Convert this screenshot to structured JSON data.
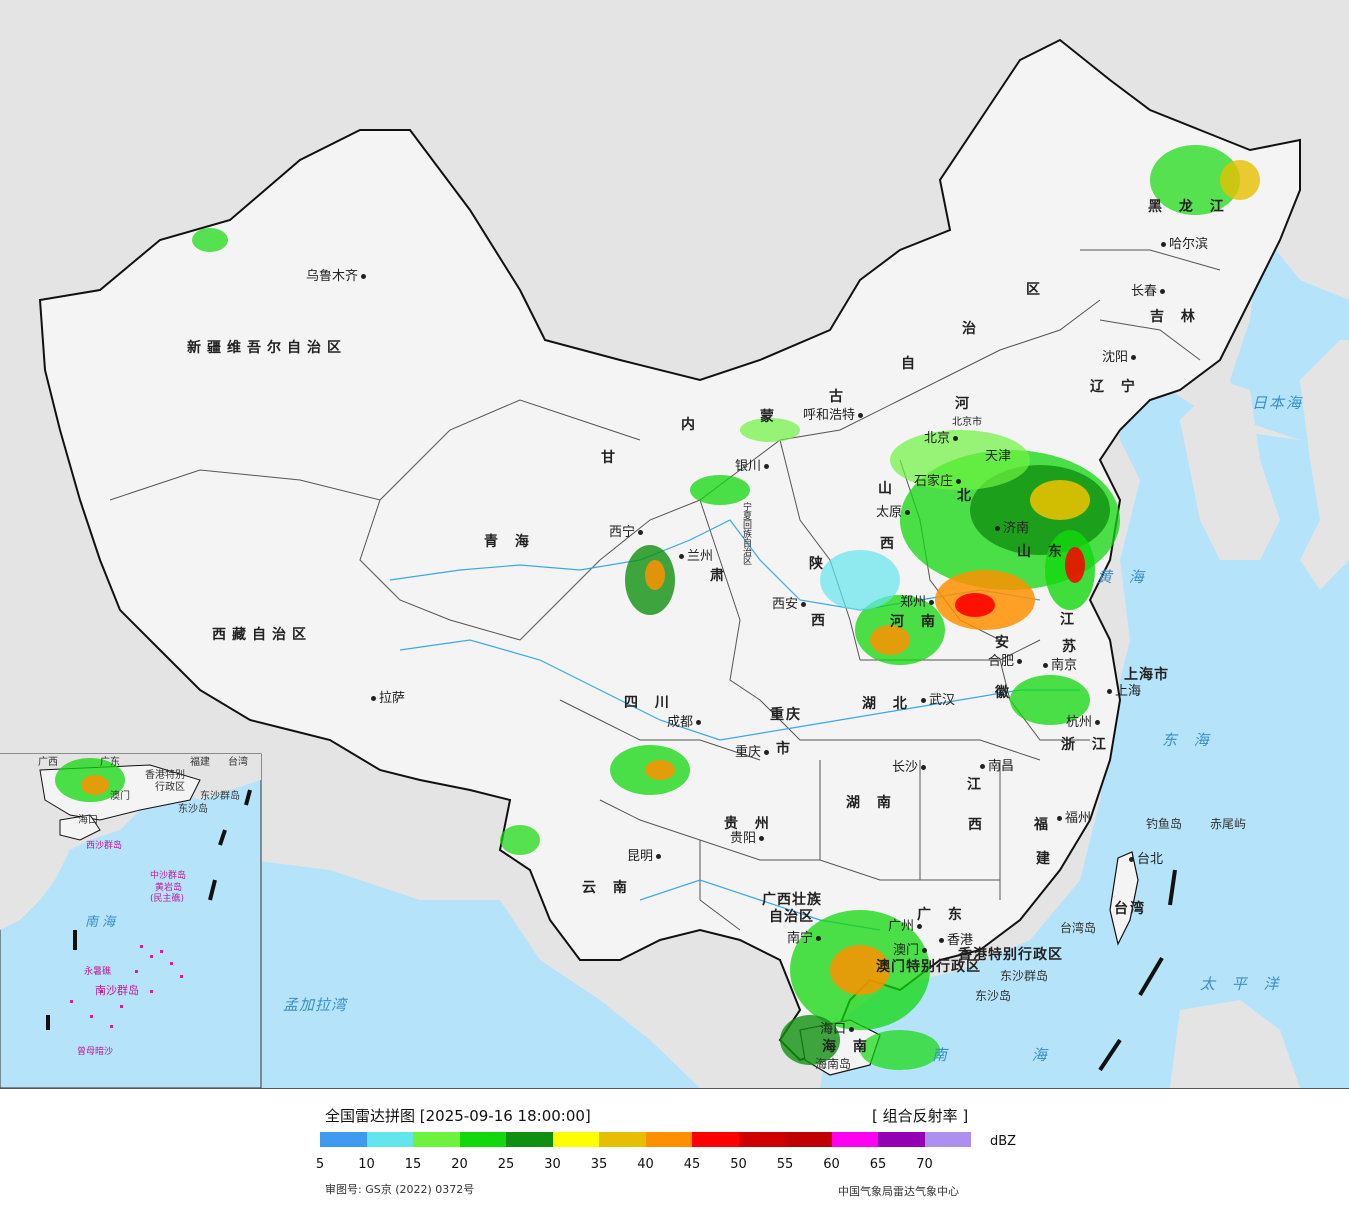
{
  "provinces": [
    {
      "id": "heilongjiang",
      "text": "黑 龙 江"
    },
    {
      "id": "jilin",
      "text": "吉 林"
    },
    {
      "id": "liaoning",
      "text": "辽 宁"
    },
    {
      "id": "neimenggu-1",
      "text": "区"
    },
    {
      "id": "neimenggu-2",
      "text": "治"
    },
    {
      "id": "neimenggu-3",
      "text": "自"
    },
    {
      "id": "neimenggu-4",
      "text": "古"
    },
    {
      "id": "neimenggu-5",
      "text": "蒙"
    },
    {
      "id": "neimenggu-6",
      "text": "内"
    },
    {
      "id": "xinjiang",
      "text": "新疆维吾尔自治区"
    },
    {
      "id": "xizang",
      "text": "西藏自治区"
    },
    {
      "id": "qinghai",
      "text": "青 海"
    },
    {
      "id": "gansu",
      "text": "甘"
    },
    {
      "id": "gansu-2",
      "text": "肃"
    },
    {
      "id": "ningxia",
      "text": "宁夏回族自治区"
    },
    {
      "id": "shaanxi-1",
      "text": "陕"
    },
    {
      "id": "shaanxi-2",
      "text": "西"
    },
    {
      "id": "shanxi-1",
      "text": "山"
    },
    {
      "id": "shanxi-2",
      "text": "西"
    },
    {
      "id": "hebei-1",
      "text": "河"
    },
    {
      "id": "hebei-2",
      "text": "北"
    },
    {
      "id": "tianjin",
      "text": "天津"
    },
    {
      "id": "shandong",
      "text": "山 东"
    },
    {
      "id": "henan",
      "text": "河 南"
    },
    {
      "id": "jiangsu-1",
      "text": "江"
    },
    {
      "id": "jiangsu-2",
      "text": "苏"
    },
    {
      "id": "anhui-1",
      "text": "安"
    },
    {
      "id": "anhui-2",
      "text": "徽"
    },
    {
      "id": "shanghai",
      "text": "上海市"
    },
    {
      "id": "zhejiang",
      "text": "浙 江"
    },
    {
      "id": "hubei",
      "text": "湖 北"
    },
    {
      "id": "sichuan",
      "text": "四 川"
    },
    {
      "id": "chongqing-1",
      "text": "重庆"
    },
    {
      "id": "chongqing-2",
      "text": "市"
    },
    {
      "id": "hunan",
      "text": "湖 南"
    },
    {
      "id": "jiangxi-1",
      "text": "江"
    },
    {
      "id": "jiangxi-2",
      "text": "西"
    },
    {
      "id": "fujian-1",
      "text": "福"
    },
    {
      "id": "fujian-2",
      "text": "建"
    },
    {
      "id": "guizhou",
      "text": "贵 州"
    },
    {
      "id": "yunnan",
      "text": "云 南"
    },
    {
      "id": "guangxi-1",
      "text": "广西壮族"
    },
    {
      "id": "guangxi-2",
      "text": "自治区"
    },
    {
      "id": "guangdong",
      "text": "广 东"
    },
    {
      "id": "hongkong",
      "text": "香港特别行政区"
    },
    {
      "id": "macau",
      "text": "澳门特别行政区"
    },
    {
      "id": "hainan",
      "text": "海 南"
    },
    {
      "id": "taiwan",
      "text": "台湾"
    },
    {
      "id": "beijing",
      "text": "北京市"
    }
  ],
  "cities": [
    {
      "id": "urumqi",
      "text": "乌鲁木齐"
    },
    {
      "id": "harbin",
      "text": "哈尔滨"
    },
    {
      "id": "changchun",
      "text": "长春"
    },
    {
      "id": "shenyang",
      "text": "沈阳"
    },
    {
      "id": "hohhot",
      "text": "呼和浩特"
    },
    {
      "id": "beijing-city",
      "text": "北京"
    },
    {
      "id": "shijiazhuang",
      "text": "石家庄"
    },
    {
      "id": "taiyuan",
      "text": "太原"
    },
    {
      "id": "jinan",
      "text": "济南"
    },
    {
      "id": "yinchuan",
      "text": "银川"
    },
    {
      "id": "xining",
      "text": "西宁"
    },
    {
      "id": "lanzhou",
      "text": "兰州"
    },
    {
      "id": "xian",
      "text": "西安"
    },
    {
      "id": "zhengzhou",
      "text": "郑州"
    },
    {
      "id": "hefei",
      "text": "合肥"
    },
    {
      "id": "nanjing",
      "text": "南京"
    },
    {
      "id": "shanghai-city",
      "text": "上海"
    },
    {
      "id": "hangzhou",
      "text": "杭州"
    },
    {
      "id": "wuhan",
      "text": "武汉"
    },
    {
      "id": "chengdu",
      "text": "成都"
    },
    {
      "id": "chongqing-city",
      "text": "重庆"
    },
    {
      "id": "lhasa",
      "text": "拉萨"
    },
    {
      "id": "changsha",
      "text": "长沙"
    },
    {
      "id": "nanchang",
      "text": "南昌"
    },
    {
      "id": "fuzhou",
      "text": "福州"
    },
    {
      "id": "guiyang",
      "text": "贵阳"
    },
    {
      "id": "kunming",
      "text": "昆明"
    },
    {
      "id": "nanning",
      "text": "南宁"
    },
    {
      "id": "guangzhou",
      "text": "广州"
    },
    {
      "id": "hongkong-city",
      "text": "香港"
    },
    {
      "id": "macau-city",
      "text": "澳门"
    },
    {
      "id": "haikou",
      "text": "海口"
    },
    {
      "id": "taipei",
      "text": "台北"
    }
  ],
  "seas": [
    {
      "id": "japan-sea",
      "text": "日本海"
    },
    {
      "id": "yellow-sea",
      "text": "黄 海"
    },
    {
      "id": "east-sea",
      "text": "东 海"
    },
    {
      "id": "pacific",
      "text": "太 平 洋"
    },
    {
      "id": "south-sea",
      "text": "南 海"
    },
    {
      "id": "bengal",
      "text": "孟加拉湾"
    }
  ],
  "islands": [
    {
      "id": "diaoyu",
      "text": "钓鱼岛"
    },
    {
      "id": "chiwei",
      "text": "赤尾屿"
    },
    {
      "id": "taiwan-island",
      "text": "台湾岛"
    },
    {
      "id": "dongsha-islands",
      "text": "东沙群岛"
    },
    {
      "id": "dongsha",
      "text": "东沙岛"
    },
    {
      "id": "hainan-island",
      "text": "海南岛"
    }
  ],
  "inset": {
    "labels": [
      {
        "id": "i-gx",
        "text": "广西"
      },
      {
        "id": "i-gd",
        "text": "广东"
      },
      {
        "id": "i-fj",
        "text": "福建"
      },
      {
        "id": "i-tw",
        "text": "台湾"
      },
      {
        "id": "i-hk",
        "text": "香港特别"
      },
      {
        "id": "i-hk2",
        "text": "行政区"
      },
      {
        "id": "i-mo",
        "text": "澳门"
      },
      {
        "id": "i-hn",
        "text": "海口"
      },
      {
        "id": "i-dsq",
        "text": "东沙群岛"
      },
      {
        "id": "i-ds",
        "text": "东沙岛"
      },
      {
        "id": "i-south-sea",
        "text": "南   海"
      }
    ],
    "islands": [
      {
        "id": "i-xisha",
        "text": "西沙群岛"
      },
      {
        "id": "i-zhongsha",
        "text": "中沙群岛"
      },
      {
        "id": "i-huangyan",
        "text": "黄岩岛"
      },
      {
        "id": "i-huangyan2",
        "text": "(民主礁)"
      },
      {
        "id": "i-yongshu",
        "text": "永暑礁"
      },
      {
        "id": "i-nansha",
        "text": "南沙群岛"
      },
      {
        "id": "i-zengmu",
        "text": "曾母暗沙"
      }
    ]
  },
  "legend": {
    "title": "全国雷达拼图 [2025-09-16 18:00:00]",
    "product": "[ 组合反射率 ]",
    "unit": "dBZ",
    "colors": [
      "#3f9bf0",
      "#62e6ec",
      "#6ef240",
      "#12d80c",
      "#109010",
      "#fefe00",
      "#e6c000",
      "#fe9000",
      "#fe0000",
      "#d00000",
      "#c00000",
      "#fe00f0",
      "#9400b4",
      "#ac90f0"
    ],
    "ticks": [
      "5",
      "10",
      "15",
      "20",
      "25",
      "30",
      "35",
      "40",
      "45",
      "50",
      "55",
      "60",
      "65",
      "70"
    ],
    "approval": "审图号: GS京 (2022) 0372号",
    "credit": "中国气象局雷达气象中心"
  }
}
